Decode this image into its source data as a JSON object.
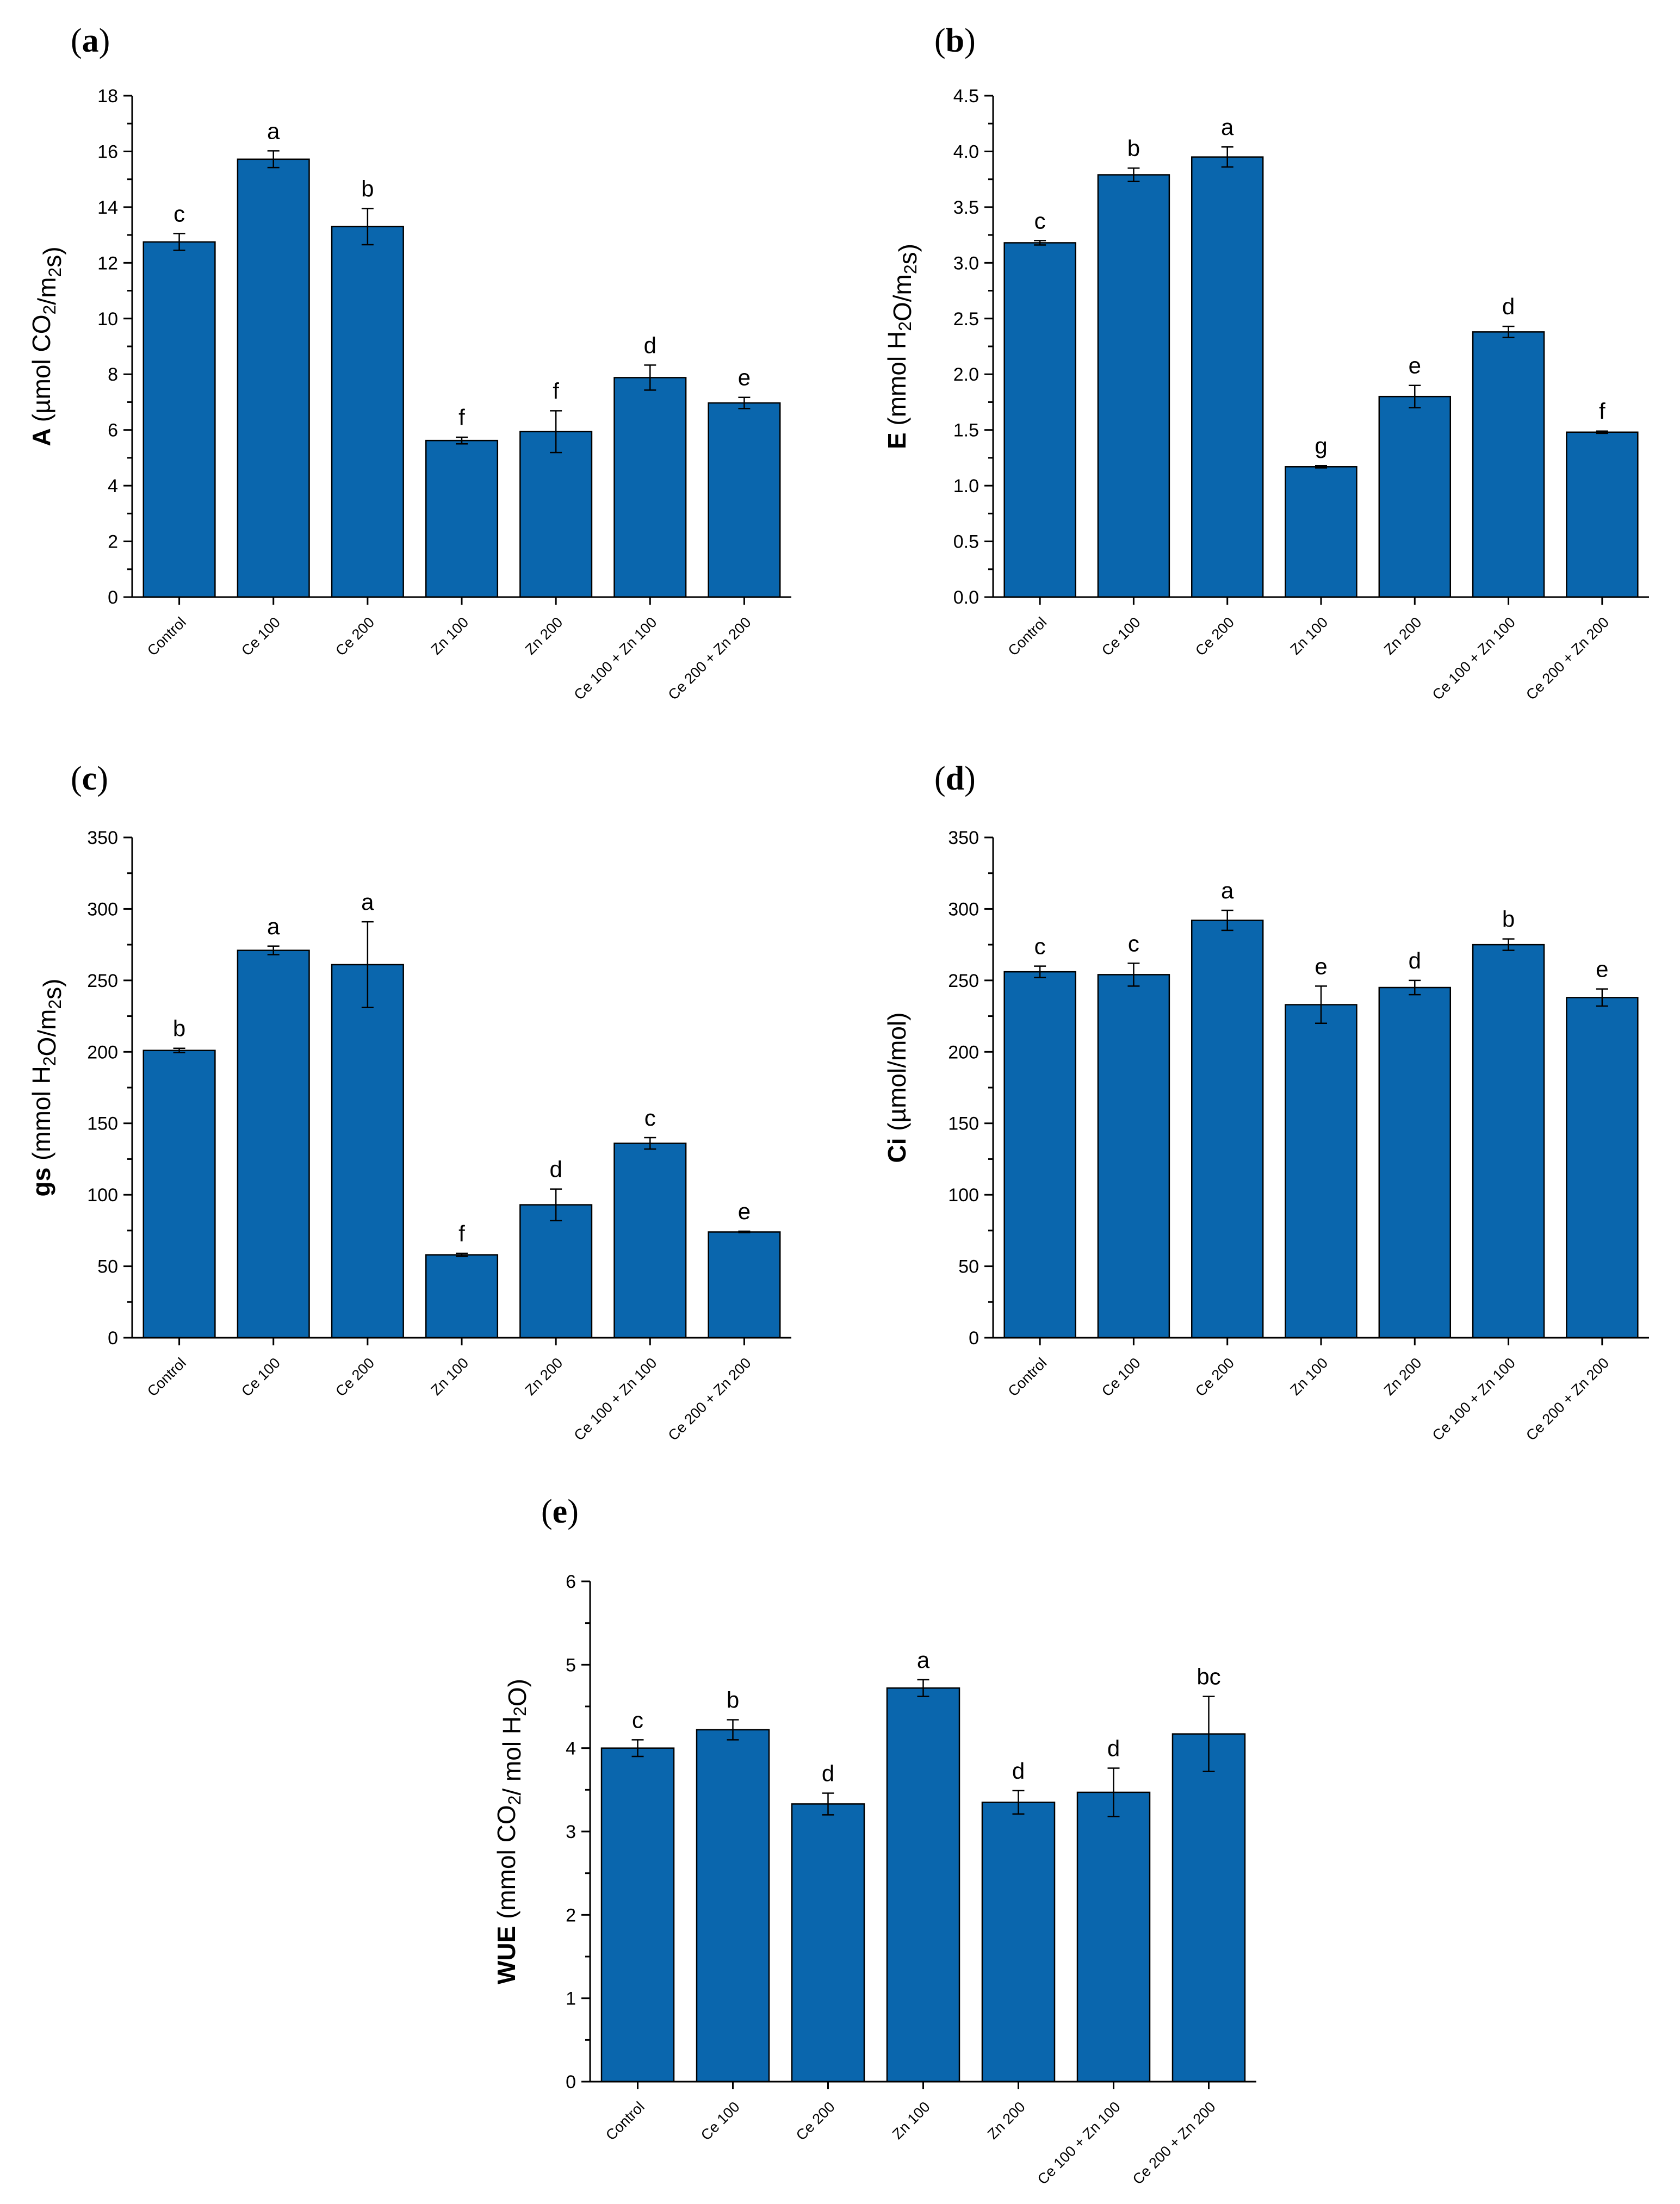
{
  "figure": {
    "categories": [
      "Control",
      "Ce 100",
      "Ce 200",
      "Zn 100",
      "Zn 200",
      "Ce 100 + Zn 100",
      "Ce 200 + Zn 200"
    ],
    "bar_color": "#0a66ad"
  },
  "chart_data": [
    {
      "panel": "a",
      "type": "bar",
      "ylabel_main": "A",
      "ylabel_parts": [
        "(µmol CO",
        "2",
        "/m",
        "2",
        "s)"
      ],
      "ylim": [
        0,
        18
      ],
      "yticks": [
        "0",
        "2",
        "4",
        "6",
        "8",
        "10",
        "12",
        "14",
        "16",
        "18"
      ],
      "tick_values": [
        0,
        2,
        4,
        6,
        8,
        10,
        12,
        14,
        16,
        18
      ],
      "categories": [
        "Control",
        "Ce 100",
        "Ce 200",
        "Zn 100",
        "Zn 200",
        "Ce 100 + Zn 100",
        "Ce 200 + Zn 200"
      ],
      "values": [
        12.75,
        15.72,
        13.3,
        5.62,
        5.94,
        7.88,
        6.97
      ],
      "errors": [
        0.3,
        0.3,
        0.65,
        0.12,
        0.75,
        0.45,
        0.2
      ],
      "letters": [
        "c",
        "a",
        "b",
        "f",
        "f",
        "d",
        "e"
      ]
    },
    {
      "panel": "b",
      "type": "bar",
      "ylabel_main": "E",
      "ylabel_parts": [
        "(mmol H",
        "2",
        "O/m",
        "2",
        "s)"
      ],
      "ylim": [
        0,
        4.5
      ],
      "yticks": [
        "0.0",
        "0.5",
        "1.0",
        "1.5",
        "2.0",
        "2.5",
        "3.0",
        "3.5",
        "4.0",
        "4.5"
      ],
      "tick_values": [
        0,
        0.5,
        1.0,
        1.5,
        2.0,
        2.5,
        3.0,
        3.5,
        4.0,
        4.5
      ],
      "categories": [
        "Control",
        "Ce 100",
        "Ce 200",
        "Zn 100",
        "Zn 200",
        "Ce 100 + Zn 100",
        "Ce 200 + Zn 200"
      ],
      "values": [
        3.18,
        3.79,
        3.95,
        1.17,
        1.8,
        2.38,
        1.48
      ],
      "errors": [
        0.02,
        0.06,
        0.09,
        0.01,
        0.1,
        0.05,
        0.01
      ],
      "letters": [
        "c",
        "b",
        "a",
        "g",
        "e",
        "d",
        "f"
      ]
    },
    {
      "panel": "c",
      "type": "bar",
      "ylabel_main": "gs",
      "ylabel_parts": [
        "(mmol H",
        "2",
        "O/m",
        "2",
        "s)"
      ],
      "ylim": [
        0,
        350
      ],
      "yticks": [
        "0",
        "50",
        "100",
        "150",
        "200",
        "250",
        "300",
        "350"
      ],
      "tick_values": [
        0,
        50,
        100,
        150,
        200,
        250,
        300,
        350
      ],
      "categories": [
        "Control",
        "Ce 100",
        "Ce 200",
        "Zn 100",
        "Zn 200",
        "Ce 100 + Zn 100",
        "Ce 200 + Zn 200"
      ],
      "values": [
        201,
        271,
        261,
        58,
        93,
        136,
        74
      ],
      "errors": [
        1.5,
        3,
        30,
        1,
        11,
        4,
        0.5
      ],
      "letters": [
        "b",
        "a",
        "a",
        "f",
        "d",
        "c",
        "e"
      ]
    },
    {
      "panel": "d",
      "type": "bar",
      "ylabel_main": "Ci",
      "ylabel_parts": [
        "(µmol/mol)"
      ],
      "ylim": [
        0,
        350
      ],
      "yticks": [
        "0",
        "50",
        "100",
        "150",
        "200",
        "250",
        "300",
        "350"
      ],
      "tick_values": [
        0,
        50,
        100,
        150,
        200,
        250,
        300,
        350
      ],
      "categories": [
        "Control",
        "Ce 100",
        "Ce 200",
        "Zn 100",
        "Zn 200",
        "Ce 100 + Zn 100",
        "Ce 200 + Zn 200"
      ],
      "values": [
        256,
        254,
        292,
        233,
        245,
        275,
        238
      ],
      "errors": [
        4,
        8,
        7,
        13,
        5,
        4,
        6
      ],
      "letters": [
        "c",
        "c",
        "a",
        "e",
        "d",
        "b",
        "e"
      ]
    },
    {
      "panel": "e",
      "type": "bar",
      "ylabel_main": "WUE",
      "ylabel_parts": [
        "(mmol CO",
        "2",
        "/ mol H",
        "2",
        "O)"
      ],
      "ylim": [
        0,
        6
      ],
      "yticks": [
        "0",
        "1",
        "2",
        "3",
        "4",
        "5",
        "6"
      ],
      "tick_values": [
        0,
        1,
        2,
        3,
        4,
        5,
        6
      ],
      "categories": [
        "Control",
        "Ce 100",
        "Ce 200",
        "Zn 100",
        "Zn 200",
        "Ce 100 + Zn 100",
        "Ce 200 + Zn 200"
      ],
      "values": [
        4.0,
        4.22,
        3.33,
        4.72,
        3.35,
        3.47,
        4.17
      ],
      "errors": [
        0.1,
        0.12,
        0.13,
        0.1,
        0.14,
        0.29,
        0.45
      ],
      "letters": [
        "c",
        "b",
        "d",
        "a",
        "d",
        "d",
        "bc"
      ]
    }
  ]
}
